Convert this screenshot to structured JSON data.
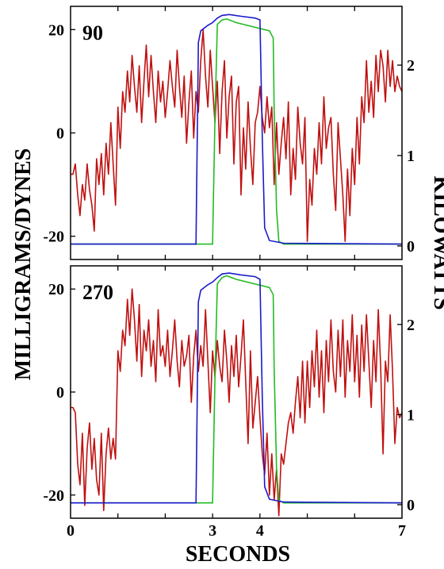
{
  "chart_data": {
    "type": "line",
    "xlabel": "SECONDS",
    "ylabel_left": "MILLIGRAMS/DYNES",
    "ylabel_right": "KILOWATTS",
    "xlim": [
      0,
      7
    ],
    "x_ticks": [
      0,
      3,
      4,
      7
    ],
    "x_ticklabels": [
      "0",
      "3",
      "4",
      "7"
    ],
    "left_ylim": [
      -24.5,
      24.5
    ],
    "left_ticks": [
      20,
      0,
      -20
    ],
    "left_ticklabels": [
      "20",
      "0",
      "-20"
    ],
    "right_ylim": [
      -0.15,
      2.65
    ],
    "right_ticks": [
      2,
      1,
      0
    ],
    "right_ticklabels": [
      "2",
      "1",
      "0"
    ],
    "colors": {
      "signal": "#c01010",
      "blue": "#1a1acc",
      "green": "#22bb22"
    },
    "panels": [
      {
        "label": "90",
        "signal": {
          "name": "",
          "axis": "left",
          "x": [
            0,
            0.05,
            0.1,
            0.15,
            0.2,
            0.25,
            0.3,
            0.35,
            0.4,
            0.45,
            0.5,
            0.55,
            0.6,
            0.65,
            0.7,
            0.75,
            0.8,
            0.85,
            0.9,
            0.95,
            1.0,
            1.05,
            1.1,
            1.15,
            1.2,
            1.25,
            1.3,
            1.35,
            1.4,
            1.45,
            1.5,
            1.55,
            1.6,
            1.65,
            1.7,
            1.75,
            1.8,
            1.85,
            1.9,
            1.95,
            2.0,
            2.05,
            2.1,
            2.15,
            2.2,
            2.25,
            2.3,
            2.35,
            2.4,
            2.45,
            2.5,
            2.55,
            2.6,
            2.65,
            2.7,
            2.75,
            2.8,
            2.85,
            2.9,
            2.95,
            3.0,
            3.05,
            3.1,
            3.15,
            3.2,
            3.25,
            3.3,
            3.35,
            3.4,
            3.45,
            3.5,
            3.55,
            3.6,
            3.65,
            3.7,
            3.75,
            3.8,
            3.85,
            3.9,
            3.95,
            4.0,
            4.05,
            4.1,
            4.15,
            4.2,
            4.25,
            4.3,
            4.35,
            4.4,
            4.45,
            4.5,
            4.55,
            4.6,
            4.65,
            4.7,
            4.75,
            4.8,
            4.85,
            4.9,
            4.95,
            5.0,
            5.05,
            5.1,
            5.15,
            5.2,
            5.25,
            5.3,
            5.35,
            5.4,
            5.45,
            5.5,
            5.55,
            5.6,
            5.65,
            5.7,
            5.75,
            5.8,
            5.85,
            5.9,
            5.95,
            6.0,
            6.05,
            6.1,
            6.15,
            6.2,
            6.25,
            6.3,
            6.35,
            6.4,
            6.45,
            6.5,
            6.55,
            6.6,
            6.65,
            6.7,
            6.75,
            6.8,
            6.85,
            6.9,
            6.95,
            7.0
          ],
          "y": [
            -8,
            -8,
            -6,
            -12,
            -16,
            -10,
            -13,
            -6,
            -11,
            -14,
            -19,
            -5,
            -10,
            -4,
            -12,
            -2,
            -8,
            2,
            -6,
            -14,
            5,
            -3,
            8,
            4,
            12,
            6,
            15,
            9,
            4,
            13,
            2,
            10,
            17,
            7,
            15,
            8,
            2,
            12,
            6,
            10,
            3,
            8,
            14,
            9,
            5,
            16,
            9,
            3,
            11,
            -2,
            6,
            12,
            -1,
            8,
            4,
            14,
            20,
            11,
            5,
            16,
            9,
            2,
            10,
            -4,
            8,
            14,
            -1,
            7,
            11,
            -6,
            6,
            9,
            -12,
            1,
            -7,
            6,
            -3,
            -10,
            2,
            4,
            9,
            3,
            0,
            7,
            1,
            5,
            -10,
            2,
            -8,
            -2,
            3,
            -5,
            6,
            -12,
            -3,
            -9,
            5,
            -2,
            -6,
            3,
            -21,
            -9,
            -14,
            -3,
            -8,
            2,
            -6,
            7,
            -3,
            1,
            3,
            -8,
            -15,
            2,
            -5,
            -12,
            -21,
            -7,
            -16,
            -3,
            -10,
            3,
            -6,
            7,
            2,
            14,
            4,
            10,
            3,
            15,
            8,
            16,
            13,
            6,
            16,
            9,
            14,
            8,
            11,
            9,
            8
          ]
        },
        "blue": {
          "name": "",
          "axis": "right",
          "x": [
            0,
            2.65,
            2.7,
            2.75,
            2.9,
            3.0,
            3.1,
            3.2,
            3.35,
            3.6,
            3.9,
            4.0,
            4.05,
            4.1,
            4.2,
            4.5,
            7.0
          ],
          "y": [
            0.02,
            0.02,
            2.25,
            2.38,
            2.44,
            2.47,
            2.52,
            2.55,
            2.56,
            2.54,
            2.52,
            2.5,
            1.2,
            0.2,
            0.06,
            0.03,
            0.02
          ]
        },
        "green": {
          "name": "",
          "axis": "right",
          "x": [
            0,
            3.0,
            3.05,
            3.1,
            3.2,
            3.3,
            3.5,
            4.2,
            4.28,
            4.3,
            4.35,
            4.4,
            4.5,
            7.0
          ],
          "y": [
            0.02,
            0.02,
            1.4,
            2.45,
            2.5,
            2.51,
            2.47,
            2.38,
            2.3,
            1.5,
            0.4,
            0.05,
            0.02,
            0.02
          ]
        }
      },
      {
        "label": "270",
        "signal": {
          "name": "",
          "axis": "left",
          "x": [
            0,
            0.05,
            0.1,
            0.15,
            0.2,
            0.25,
            0.3,
            0.35,
            0.4,
            0.45,
            0.5,
            0.55,
            0.6,
            0.65,
            0.7,
            0.75,
            0.8,
            0.85,
            0.9,
            0.95,
            1.0,
            1.05,
            1.1,
            1.15,
            1.2,
            1.25,
            1.3,
            1.35,
            1.4,
            1.45,
            1.5,
            1.55,
            1.6,
            1.65,
            1.7,
            1.75,
            1.8,
            1.85,
            1.9,
            1.95,
            2.0,
            2.05,
            2.1,
            2.15,
            2.2,
            2.25,
            2.3,
            2.35,
            2.4,
            2.45,
            2.5,
            2.55,
            2.6,
            2.65,
            2.7,
            2.75,
            2.8,
            2.85,
            2.9,
            2.95,
            3.0,
            3.05,
            3.1,
            3.15,
            3.2,
            3.25,
            3.3,
            3.35,
            3.4,
            3.45,
            3.5,
            3.55,
            3.6,
            3.65,
            3.7,
            3.75,
            3.8,
            3.85,
            3.9,
            3.95,
            4.0,
            4.05,
            4.1,
            4.15,
            4.2,
            4.25,
            4.3,
            4.35,
            4.4,
            4.45,
            4.5,
            4.55,
            4.6,
            4.65,
            4.7,
            4.75,
            4.8,
            4.85,
            4.9,
            4.95,
            5.0,
            5.05,
            5.1,
            5.15,
            5.2,
            5.25,
            5.3,
            5.35,
            5.4,
            5.45,
            5.5,
            5.55,
            5.6,
            5.65,
            5.7,
            5.75,
            5.8,
            5.85,
            5.9,
            5.95,
            6.0,
            6.05,
            6.1,
            6.15,
            6.2,
            6.25,
            6.3,
            6.35,
            6.4,
            6.45,
            6.5,
            6.55,
            6.6,
            6.65,
            6.7,
            6.75,
            6.8,
            6.85,
            6.9,
            6.95,
            7.0
          ],
          "y": [
            -3,
            -3,
            -4,
            -14,
            -18,
            -8,
            -22,
            -11,
            -6,
            -15,
            -9,
            -17,
            -20,
            -8,
            -23,
            -12,
            -7,
            -13,
            -9,
            -13,
            8,
            4,
            12,
            9,
            18,
            11,
            20,
            14,
            6,
            17,
            3,
            12,
            8,
            14,
            5,
            10,
            2,
            16,
            7,
            9,
            5,
            12,
            3,
            8,
            14,
            6,
            1,
            10,
            5,
            7,
            11,
            -2,
            7,
            12,
            4,
            9,
            5,
            16,
            6,
            -4,
            8,
            3,
            10,
            5,
            2,
            12,
            6,
            -2,
            9,
            3,
            11,
            1,
            7,
            14,
            2,
            -10,
            8,
            -7,
            -2,
            3,
            -5,
            -12,
            -16,
            -8,
            -20,
            -12,
            -21,
            -15,
            -24,
            -12,
            -14,
            -10,
            -6,
            -4,
            -8,
            -2,
            3,
            -5,
            6,
            -6,
            6,
            -3,
            8,
            1,
            12,
            -1,
            8,
            -4,
            10,
            2,
            14,
            4,
            0,
            12,
            3,
            14,
            -1,
            10,
            4,
            15,
            2,
            11,
            -1,
            13,
            4,
            15,
            6,
            -3,
            10,
            2,
            16,
            5,
            -12,
            6,
            2,
            15,
            4,
            -10,
            -3,
            -5,
            -4
          ]
        },
        "blue": {
          "name": "",
          "axis": "right",
          "x": [
            0,
            2.65,
            2.7,
            2.75,
            2.9,
            3.0,
            3.1,
            3.2,
            3.35,
            3.6,
            3.9,
            4.0,
            4.05,
            4.1,
            4.2,
            4.5,
            7.0
          ],
          "y": [
            0.02,
            0.02,
            2.25,
            2.38,
            2.44,
            2.47,
            2.52,
            2.56,
            2.57,
            2.55,
            2.53,
            2.5,
            1.2,
            0.2,
            0.06,
            0.03,
            0.02
          ]
        },
        "green": {
          "name": "",
          "axis": "right",
          "x": [
            0,
            3.0,
            3.05,
            3.1,
            3.2,
            3.3,
            3.5,
            4.2,
            4.28,
            4.3,
            4.35,
            4.4,
            4.5,
            7.0
          ],
          "y": [
            0.02,
            0.02,
            1.4,
            2.45,
            2.52,
            2.54,
            2.5,
            2.41,
            2.33,
            1.5,
            0.4,
            0.05,
            0.02,
            0.02
          ]
        }
      }
    ]
  }
}
